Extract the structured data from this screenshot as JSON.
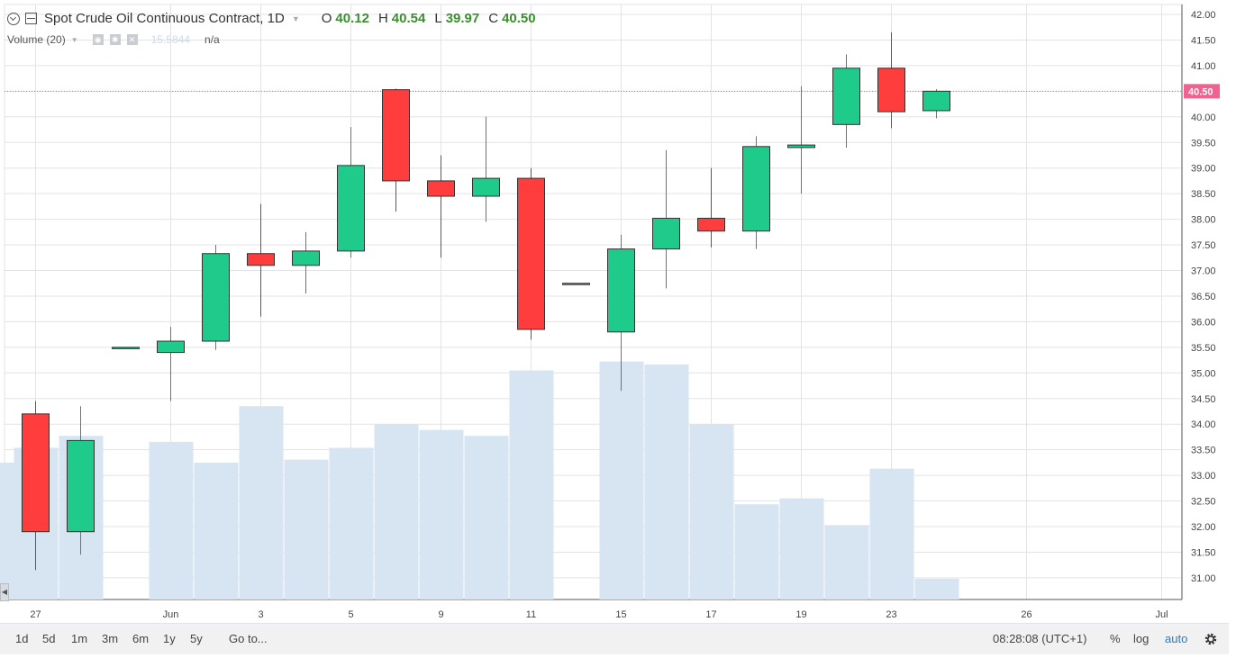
{
  "legend": {
    "title": "Spot Crude Oil Continuous Contract, 1D",
    "o_label": "O",
    "o_value": "40.12",
    "h_label": "H",
    "h_value": "40.54",
    "l_label": "L",
    "l_value": "39.97",
    "c_label": "C",
    "c_value": "40.50"
  },
  "volume_legend": {
    "label": "Volume (20)",
    "value": "15.5844",
    "na": "n/a"
  },
  "toolbar": {
    "ranges": [
      "1d",
      "5d",
      "1m",
      "3m",
      "6m",
      "1y",
      "5y"
    ],
    "goto": "Go to...",
    "time": "08:28:08 (UTC+1)",
    "percent": "%",
    "log": "log",
    "auto": "auto"
  },
  "colors": {
    "up": "#1ecb8b",
    "down": "#ff3d3d",
    "volume": "#d6e5f1",
    "grid": "#e1e3ea",
    "last_price": "#f0628f"
  },
  "chart_data": {
    "type": "candlestick",
    "title": "Spot Crude Oil Continuous Contract, 1D",
    "ylim": [
      30.8,
      42.1
    ],
    "y_ticks": [
      "31.00",
      "31.50",
      "32.00",
      "32.50",
      "33.00",
      "33.50",
      "34.00",
      "34.50",
      "35.00",
      "35.50",
      "36.00",
      "36.50",
      "37.00",
      "37.50",
      "38.00",
      "38.50",
      "39.00",
      "39.50",
      "40.00",
      "40.50",
      "41.00",
      "41.50",
      "42.00"
    ],
    "x_ticks": [
      {
        "label": "27",
        "slot": 0
      },
      {
        "label": "Jun",
        "slot": 3
      },
      {
        "label": "3",
        "slot": 5
      },
      {
        "label": "5",
        "slot": 7
      },
      {
        "label": "9",
        "slot": 9
      },
      {
        "label": "11",
        "slot": 11
      },
      {
        "label": "15",
        "slot": 13
      },
      {
        "label": "17",
        "slot": 15
      },
      {
        "label": "19",
        "slot": 17
      },
      {
        "label": "23",
        "slot": 19
      },
      {
        "label": "26",
        "slot": 22
      },
      {
        "label": "Jul",
        "slot": 25
      }
    ],
    "last_price": "40.50",
    "candles": [
      {
        "slot": 0,
        "o": 34.2,
        "h": 34.45,
        "l": 31.15,
        "c": 31.9
      },
      {
        "slot": 1,
        "o": 31.9,
        "h": 34.35,
        "l": 31.45,
        "c": 33.68
      },
      {
        "slot": 2,
        "o": 35.5,
        "h": 35.5,
        "l": 35.5,
        "c": 35.5
      },
      {
        "slot": 3,
        "o": 35.4,
        "h": 35.9,
        "l": 34.45,
        "c": 35.62
      },
      {
        "slot": 4,
        "o": 35.62,
        "h": 37.5,
        "l": 35.45,
        "c": 37.33
      },
      {
        "slot": 5,
        "o": 37.33,
        "h": 38.3,
        "l": 36.1,
        "c": 37.1
      },
      {
        "slot": 6,
        "o": 37.1,
        "h": 37.75,
        "l": 36.55,
        "c": 37.38
      },
      {
        "slot": 7,
        "o": 37.38,
        "h": 39.8,
        "l": 37.25,
        "c": 39.05
      },
      {
        "slot": 8,
        "o": 40.53,
        "h": 40.55,
        "l": 38.15,
        "c": 38.75
      },
      {
        "slot": 9,
        "o": 38.75,
        "h": 39.25,
        "l": 37.25,
        "c": 38.45
      },
      {
        "slot": 10,
        "o": 38.45,
        "h": 40.0,
        "l": 37.95,
        "c": 38.8
      },
      {
        "slot": 11,
        "o": 38.8,
        "h": 39.0,
        "l": 35.65,
        "c": 35.85
      },
      {
        "slot": 12,
        "o": 36.75,
        "h": 36.75,
        "l": 36.75,
        "c": 36.75
      },
      {
        "slot": 13,
        "o": 35.8,
        "h": 37.7,
        "l": 34.65,
        "c": 37.42
      },
      {
        "slot": 14,
        "o": 37.42,
        "h": 39.35,
        "l": 36.65,
        "c": 38.02
      },
      {
        "slot": 15,
        "o": 38.02,
        "h": 39.0,
        "l": 37.45,
        "c": 37.77
      },
      {
        "slot": 16,
        "o": 37.77,
        "h": 39.62,
        "l": 37.42,
        "c": 39.42
      },
      {
        "slot": 17,
        "o": 39.4,
        "h": 40.6,
        "l": 38.5,
        "c": 39.45
      },
      {
        "slot": 18,
        "o": 39.85,
        "h": 41.22,
        "l": 39.4,
        "c": 40.95
      },
      {
        "slot": 19,
        "o": 40.95,
        "h": 41.65,
        "l": 39.78,
        "c": 40.1
      },
      {
        "slot": 20,
        "o": 40.12,
        "h": 40.54,
        "l": 39.97,
        "c": 40.5
      }
    ],
    "volume": [
      {
        "slot": -0.5,
        "v": 0.46
      },
      {
        "slot": 0,
        "v": 0.51
      },
      {
        "slot": 1,
        "v": 0.55
      },
      {
        "slot": 3,
        "v": 0.53
      },
      {
        "slot": 4,
        "v": 0.46
      },
      {
        "slot": 5,
        "v": 0.65
      },
      {
        "slot": 6,
        "v": 0.47
      },
      {
        "slot": 7,
        "v": 0.51
      },
      {
        "slot": 8,
        "v": 0.59
      },
      {
        "slot": 9,
        "v": 0.57
      },
      {
        "slot": 10,
        "v": 0.55
      },
      {
        "slot": 11,
        "v": 0.77
      },
      {
        "slot": 13,
        "v": 0.8
      },
      {
        "slot": 14,
        "v": 0.79
      },
      {
        "slot": 15,
        "v": 0.59
      },
      {
        "slot": 16,
        "v": 0.32
      },
      {
        "slot": 17,
        "v": 0.34
      },
      {
        "slot": 18,
        "v": 0.25
      },
      {
        "slot": 19,
        "v": 0.44
      },
      {
        "slot": 20,
        "v": 0.07
      }
    ]
  }
}
